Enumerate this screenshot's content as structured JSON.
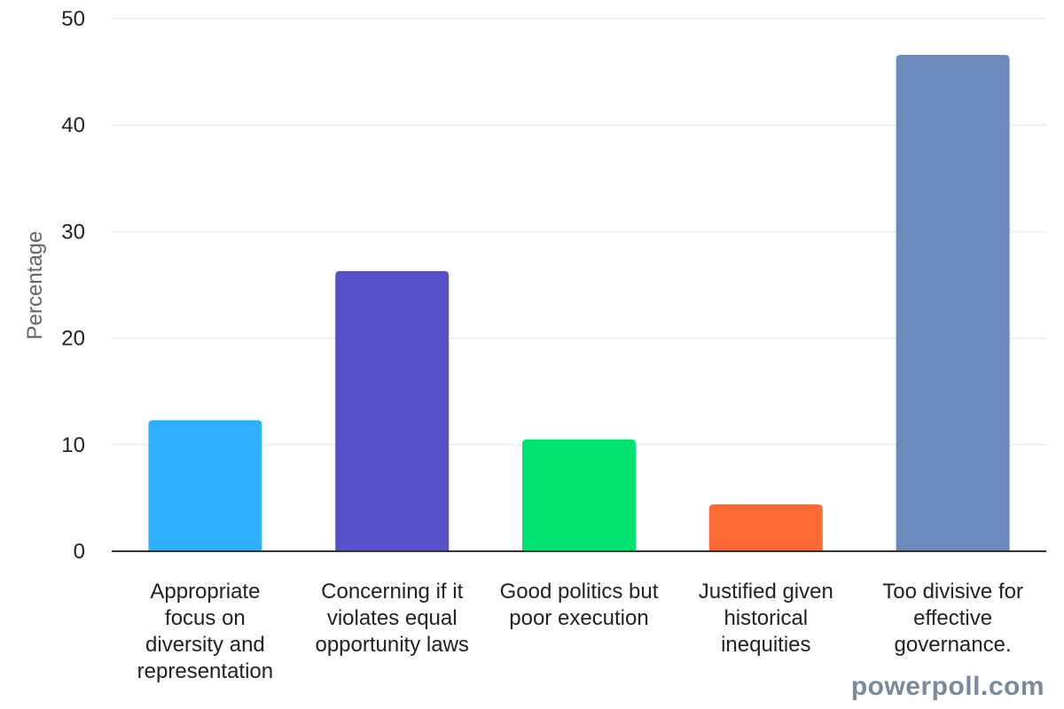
{
  "chart_data": {
    "type": "bar",
    "title": "",
    "xlabel": "",
    "ylabel": "Percentage",
    "ylim": [
      0,
      50
    ],
    "yticks": [
      0,
      10,
      20,
      30,
      40,
      50
    ],
    "grid": true,
    "categories": [
      "Appropriate focus on diversity and representation",
      "Concerning if it violates equal opportunity laws",
      "Good politics but poor execution",
      "Justified given historical inequities",
      "Too divisive for effective governance."
    ],
    "category_lines": [
      [
        "Appropriate",
        "focus on",
        "diversity and",
        "representation"
      ],
      [
        "Concerning if it",
        "violates equal",
        "opportunity laws"
      ],
      [
        "Good politics but",
        "poor execution"
      ],
      [
        "Justified given",
        "historical",
        "inequities"
      ],
      [
        "Too divisive for",
        "effective",
        "governance."
      ]
    ],
    "values": [
      12.3,
      26.3,
      10.5,
      4.4,
      46.6
    ],
    "colors": [
      "#2eb0ff",
      "#5651c8",
      "#00e272",
      "#fe6a35",
      "#6b8abc"
    ]
  },
  "watermark": "powerpoll.com"
}
